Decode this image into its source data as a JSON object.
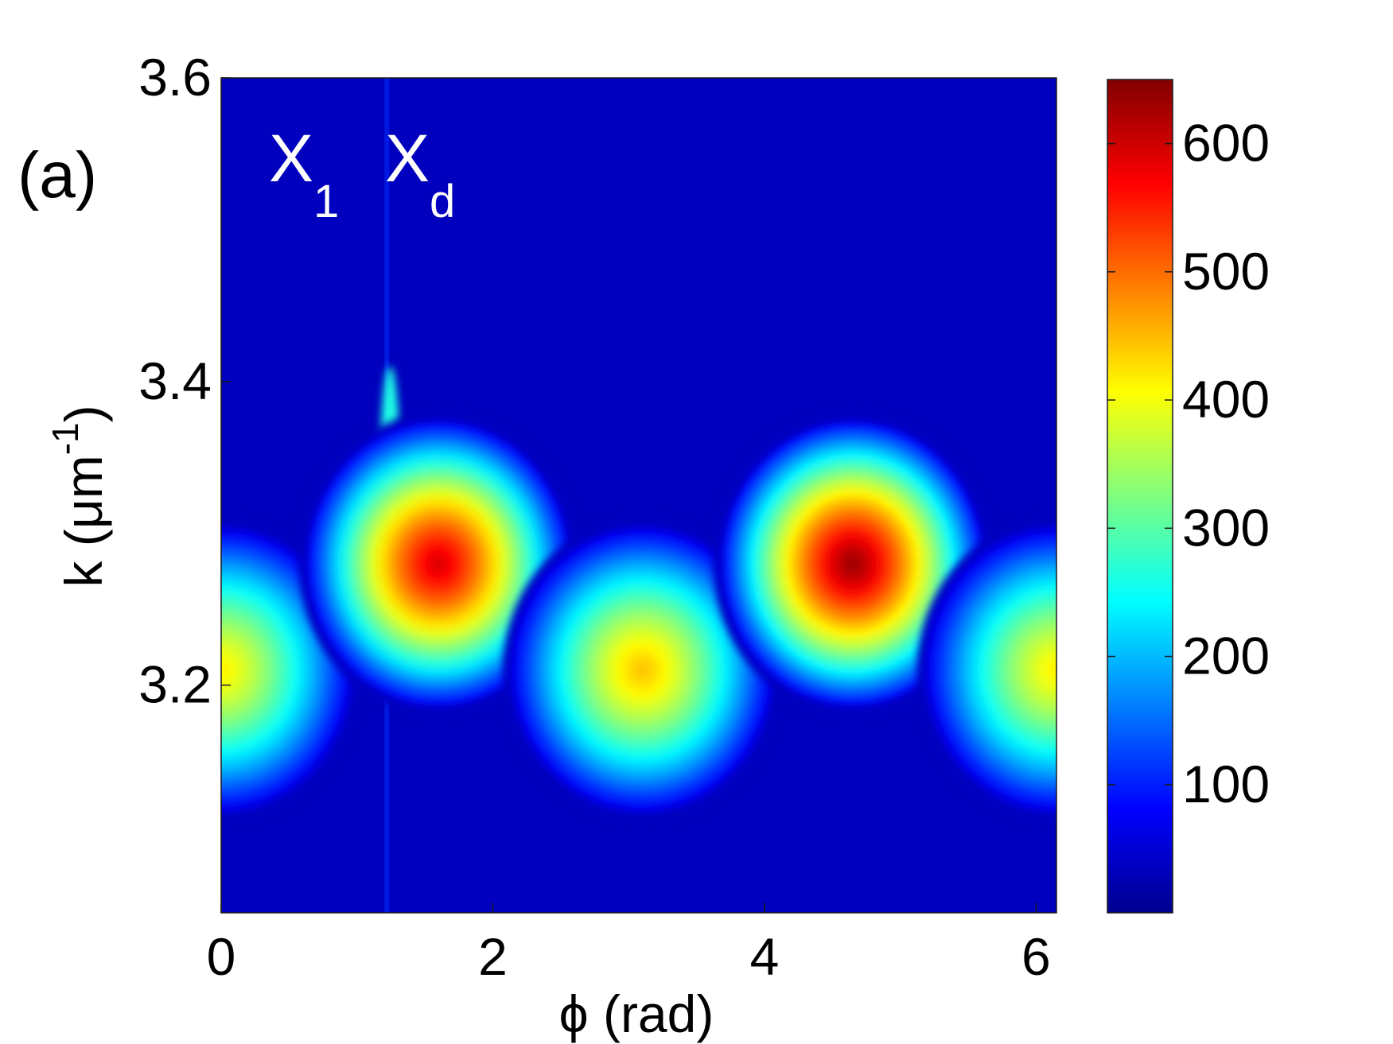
{
  "panel_label": "(a)",
  "chart_data": {
    "type": "heatmap",
    "xlabel": "ϕ (rad)",
    "ylabel": {
      "base": "k (μm",
      "sup": "-1",
      "close": ")"
    },
    "xlim": [
      0,
      6.15
    ],
    "ylim": [
      3.05,
      3.6
    ],
    "xticks": [
      0,
      2,
      4,
      6
    ],
    "yticks": [
      3.2,
      3.4,
      3.6
    ],
    "xtick_labels": [
      "0",
      "2",
      "4",
      "6"
    ],
    "ytick_labels": [
      "3.2",
      "3.4",
      "3.6"
    ],
    "annotations": [
      {
        "base": "X",
        "sub": "1"
      },
      {
        "base": "X",
        "sub": "d"
      }
    ],
    "colorbar": {
      "range": [
        0,
        650
      ],
      "ticks": [
        100,
        200,
        300,
        400,
        500,
        600
      ],
      "tick_labels": [
        "100",
        "200",
        "300",
        "400",
        "500",
        "600"
      ],
      "colormap": "jet"
    },
    "background_value": 40,
    "peaks": [
      {
        "phi": 0.0,
        "k": 3.21,
        "value": 420
      },
      {
        "phi": 1.6,
        "k": 3.28,
        "value": 600
      },
      {
        "phi": 3.1,
        "k": 3.21,
        "value": 450
      },
      {
        "phi": 4.65,
        "k": 3.28,
        "value": 640
      },
      {
        "phi": 6.15,
        "k": 3.21,
        "value": 420
      }
    ],
    "streak": {
      "phi": 1.22,
      "k_from": 3.26,
      "k_to": 3.41,
      "value": 260
    },
    "grid": false
  }
}
